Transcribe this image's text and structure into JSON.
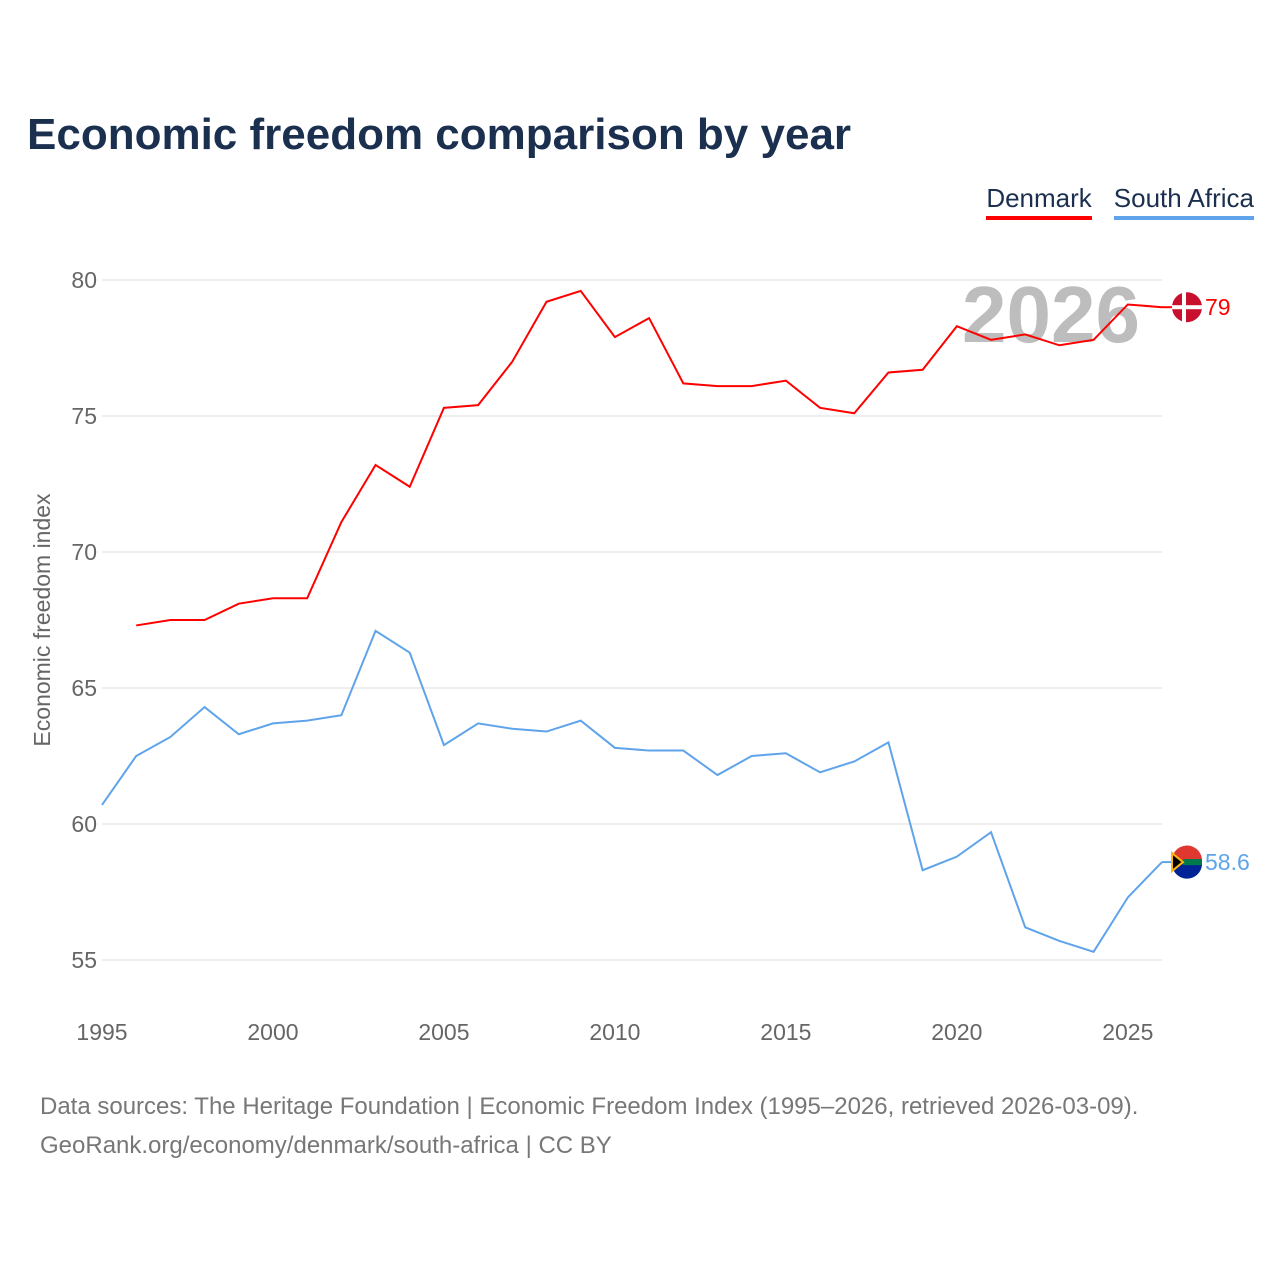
{
  "chart_data": {
    "type": "line",
    "title": "Economic freedom comparison by year",
    "xlabel": "",
    "ylabel": "Economic freedom index",
    "xlim": [
      1995,
      2026
    ],
    "ylim": [
      55,
      80
    ],
    "x_ticks": [
      "1995",
      "2000",
      "2005",
      "2010",
      "2015",
      "2020",
      "2025"
    ],
    "y_ticks": [
      "55",
      "60",
      "65",
      "70",
      "75",
      "80"
    ],
    "year_watermark": "2026",
    "legend_position": "top-right",
    "series": [
      {
        "name": "Denmark",
        "color": "#ff0000",
        "end_label": "79",
        "flag": "denmark-flag",
        "start": 1996,
        "values": [
          67.3,
          67.5,
          67.5,
          68.1,
          68.3,
          68.3,
          71.1,
          73.2,
          72.4,
          75.3,
          75.4,
          77.0,
          79.2,
          79.6,
          77.9,
          78.6,
          76.2,
          76.1,
          76.1,
          76.3,
          75.3,
          75.1,
          76.6,
          76.7,
          78.3,
          77.8,
          78.0,
          77.6,
          77.8,
          79.1,
          79.0
        ]
      },
      {
        "name": "South Africa",
        "color": "#5fa4ea",
        "end_label": "58.6",
        "flag": "south-africa-flag",
        "start": 1995,
        "values": [
          60.7,
          62.5,
          63.2,
          64.3,
          63.3,
          63.7,
          63.8,
          64.0,
          67.1,
          66.3,
          62.9,
          63.7,
          63.5,
          63.4,
          63.8,
          62.8,
          62.7,
          62.7,
          61.8,
          62.5,
          62.6,
          61.9,
          62.3,
          63.0,
          58.3,
          58.8,
          59.7,
          56.2,
          55.7,
          55.3,
          57.3,
          58.6
        ]
      }
    ]
  },
  "footer": {
    "line1": "Data sources: The Heritage Foundation | Economic Freedom Index (1995–2026, retrieved 2026-03-09).",
    "line2": "GeoRank.org/economy/denmark/south-africa | CC BY"
  }
}
